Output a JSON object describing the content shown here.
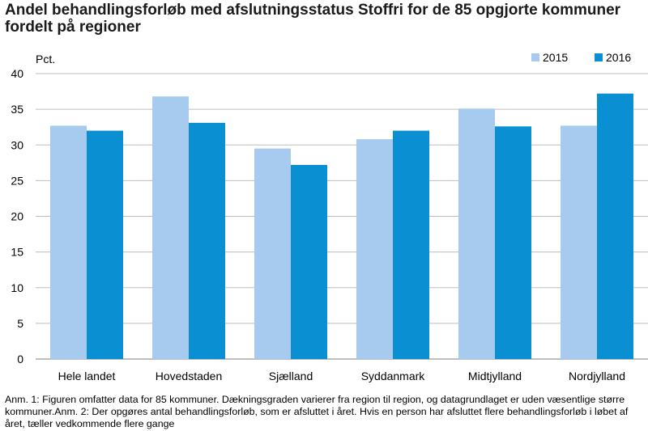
{
  "title": "Andel behandlingsforløb med afslutningsstatus Stoffri for de 85 opgjorte kommuner fordelt på regioner",
  "notes": "Anm. 1: Figuren omfatter data for 85 kommuner. Dækningsgraden varierer fra region til region, og datagrundlaget er uden væsentlige større kommuner.Anm. 2: Der opgøres antal behandlingsforløb, som er afsluttet i året. Hvis en person har afsluttet flere behandlingsforløb i løbet af året, tæller vedkommende flere gange",
  "colors": {
    "s2015": "#a6cbee",
    "s2016": "#0a8fd2",
    "grid": "#bdbdbd"
  },
  "chart_data": {
    "type": "bar",
    "unit_label": "Pct.",
    "categories": [
      "Hele landet",
      "Hovedstaden",
      "Sjælland",
      "Syddanmark",
      "Midtjylland",
      "Nordjylland"
    ],
    "series": [
      {
        "name": "2015",
        "values": [
          32.7,
          36.8,
          29.5,
          30.8,
          35.1,
          32.7
        ]
      },
      {
        "name": "2016",
        "values": [
          32.0,
          33.1,
          27.2,
          32.0,
          32.6,
          37.2
        ]
      }
    ],
    "ylim": [
      0,
      40
    ],
    "yticks": [
      0,
      5,
      10,
      15,
      20,
      25,
      30,
      35,
      40
    ],
    "grid": true,
    "legend_position": "top-right"
  }
}
